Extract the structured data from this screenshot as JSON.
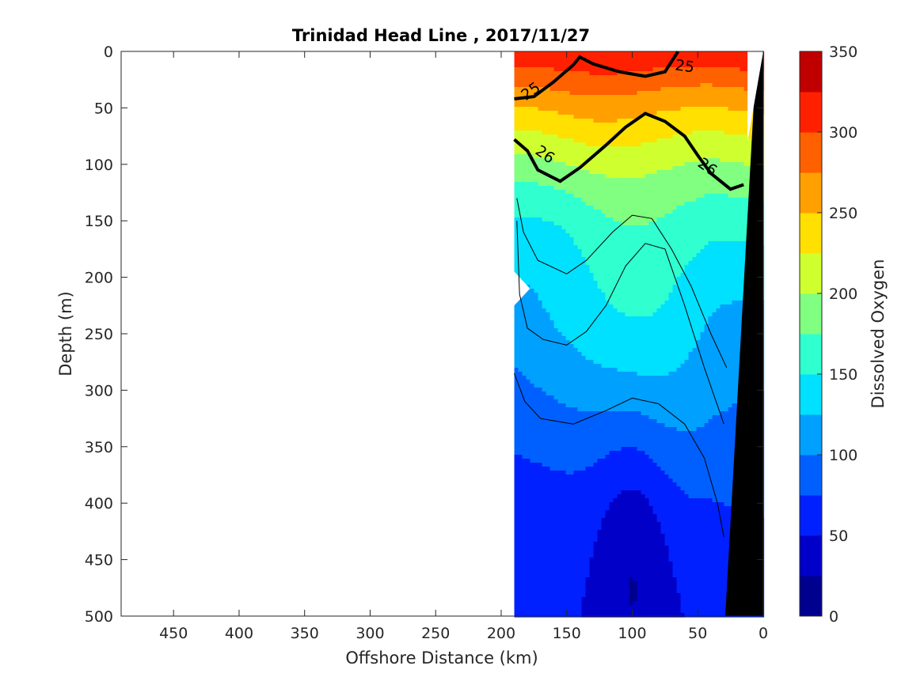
{
  "chart_data": {
    "type": "contour",
    "title": "Trinidad Head Line , 2017/11/27",
    "xlabel": "Offshore Distance (km)",
    "ylabel": "Depth (m)",
    "colorbar_label": "Dissolved Oxygen",
    "xlim": [
      490,
      0
    ],
    "ylim": [
      0,
      500
    ],
    "x_ticks": [
      450,
      400,
      350,
      300,
      250,
      200,
      150,
      100,
      50,
      0
    ],
    "y_ticks": [
      0,
      50,
      100,
      150,
      200,
      250,
      300,
      350,
      400,
      450,
      500
    ],
    "colorbar_ticks": [
      0,
      50,
      100,
      150,
      200,
      250,
      300,
      350
    ],
    "colorbar_range": [
      0,
      350
    ],
    "colormap": [
      "#00008f",
      "#0000c8",
      "#0020ff",
      "#0060ff",
      "#00a0ff",
      "#00e0ff",
      "#30ffd0",
      "#80ff80",
      "#d0ff30",
      "#ffe000",
      "#ffa000",
      "#ff6000",
      "#ff2000",
      "#c00000"
    ],
    "data_extent_km": [
      190,
      0
    ],
    "density_contours": [
      {
        "label": "25",
        "bold": true,
        "points": [
          [
            190,
            42
          ],
          [
            175,
            40
          ],
          [
            160,
            27
          ],
          [
            145,
            12
          ],
          [
            140,
            5
          ],
          [
            130,
            11
          ],
          [
            110,
            18
          ],
          [
            90,
            22
          ],
          [
            75,
            18
          ],
          [
            65,
            0
          ]
        ]
      },
      {
        "label": "26",
        "bold": true,
        "points": [
          [
            190,
            78
          ],
          [
            180,
            88
          ],
          [
            172,
            105
          ],
          [
            155,
            115
          ],
          [
            140,
            103
          ],
          [
            120,
            83
          ],
          [
            105,
            67
          ],
          [
            90,
            55
          ],
          [
            75,
            62
          ],
          [
            60,
            75
          ],
          [
            50,
            92
          ],
          [
            40,
            108
          ],
          [
            25,
            122
          ],
          [
            15,
            118
          ]
        ]
      },
      {
        "label": "",
        "bold": false,
        "points": [
          [
            190,
            285
          ],
          [
            182,
            310
          ],
          [
            170,
            325
          ],
          [
            145,
            330
          ],
          [
            120,
            318
          ],
          [
            100,
            307
          ],
          [
            80,
            312
          ],
          [
            60,
            330
          ],
          [
            45,
            360
          ],
          [
            35,
            400
          ],
          [
            30,
            430
          ]
        ]
      },
      {
        "label": "",
        "bold": false,
        "points": [
          [
            188,
            150
          ],
          [
            186,
            215
          ],
          [
            180,
            245
          ],
          [
            168,
            255
          ],
          [
            150,
            260
          ],
          [
            135,
            248
          ],
          [
            120,
            225
          ],
          [
            105,
            190
          ],
          [
            90,
            170
          ],
          [
            75,
            175
          ],
          [
            60,
            225
          ],
          [
            45,
            280
          ],
          [
            30,
            330
          ]
        ]
      },
      {
        "label": "",
        "bold": false,
        "points": [
          [
            188,
            130
          ],
          [
            183,
            160
          ],
          [
            172,
            185
          ],
          [
            150,
            197
          ],
          [
            135,
            185
          ],
          [
            115,
            160
          ],
          [
            100,
            145
          ],
          [
            85,
            148
          ],
          [
            70,
            175
          ],
          [
            55,
            208
          ],
          [
            40,
            250
          ],
          [
            28,
            280
          ]
        ]
      }
    ],
    "bathymetry": "black seafloor wedge near 0 km",
    "annotations": [
      "25",
      "26"
    ]
  }
}
